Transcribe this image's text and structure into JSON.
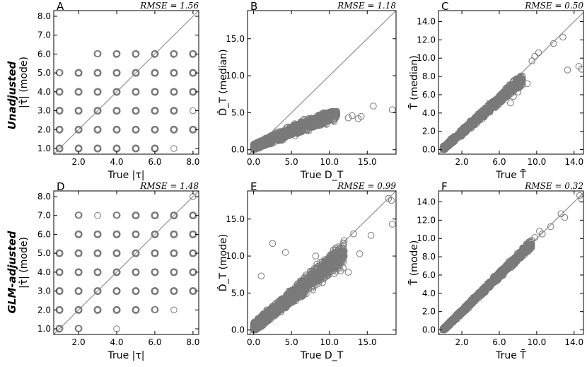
{
  "figure": {
    "row_labels": [
      "Unadjusted",
      "GLM-adjusted"
    ]
  },
  "colors": {
    "marker": "#7a7a7a",
    "diagonal": "#999999",
    "axis": "#000000"
  },
  "chart_data": [
    {
      "id": "A",
      "type": "scatter",
      "panel_label": "A",
      "rmse_text": "RMSE = 1.56",
      "xlabel": "True |τ|",
      "ylabel": "|τ̂| (mode)",
      "xlim": [
        0.7,
        8.3
      ],
      "ylim": [
        0.7,
        8.3
      ],
      "xticks": [
        2,
        4,
        6,
        8
      ],
      "xtick_labels": [
        "2.0",
        "4.0",
        "6.0",
        "8.0"
      ],
      "yticks": [
        1,
        2,
        3,
        4,
        5,
        6,
        7,
        8
      ],
      "ytick_labels": [
        "1.0",
        "2.0",
        "3.0",
        "4.0",
        "5.0",
        "6.0",
        "7.0",
        "8.0"
      ],
      "points": [
        [
          1,
          1,
          4
        ],
        [
          1,
          2,
          4
        ],
        [
          1,
          3,
          4
        ],
        [
          1,
          4,
          4
        ],
        [
          1,
          5,
          2
        ],
        [
          2,
          1,
          4
        ],
        [
          2,
          2,
          4
        ],
        [
          2,
          3,
          4
        ],
        [
          2,
          4,
          4
        ],
        [
          2,
          5,
          4
        ],
        [
          3,
          1,
          4
        ],
        [
          3,
          2,
          4
        ],
        [
          3,
          3,
          4
        ],
        [
          3,
          4,
          4
        ],
        [
          3,
          5,
          4
        ],
        [
          3,
          6,
          2
        ],
        [
          4,
          1,
          4
        ],
        [
          4,
          2,
          4
        ],
        [
          4,
          3,
          4
        ],
        [
          4,
          4,
          4
        ],
        [
          4,
          5,
          4
        ],
        [
          4,
          6,
          3
        ],
        [
          5,
          1,
          4
        ],
        [
          5,
          2,
          4
        ],
        [
          5,
          3,
          4
        ],
        [
          5,
          4,
          4
        ],
        [
          5,
          5,
          4
        ],
        [
          5,
          6,
          3
        ],
        [
          6,
          1,
          4
        ],
        [
          6,
          2,
          4
        ],
        [
          6,
          3,
          4
        ],
        [
          6,
          4,
          4
        ],
        [
          6,
          5,
          4
        ],
        [
          6,
          6,
          3
        ],
        [
          7,
          1,
          1
        ],
        [
          7,
          2,
          4
        ],
        [
          7,
          3,
          4
        ],
        [
          7,
          4,
          4
        ],
        [
          7,
          5,
          4
        ],
        [
          7,
          6,
          3
        ],
        [
          8,
          2,
          4
        ],
        [
          8,
          3,
          1
        ],
        [
          8,
          4,
          4
        ],
        [
          8,
          5,
          4
        ],
        [
          8,
          6,
          3
        ]
      ]
    },
    {
      "id": "B",
      "type": "scatter",
      "panel_label": "B",
      "rmse_text": "RMSE = 1.18",
      "xlabel": "True D_T",
      "ylabel": "D̂_T (median)",
      "xlim": [
        -0.8,
        18.8
      ],
      "ylim": [
        -0.6,
        18.8
      ],
      "xticks": [
        0,
        5,
        10,
        15
      ],
      "xtick_labels": [
        "0.0",
        "5.0",
        "10.0",
        "15.0"
      ],
      "yticks": [
        0,
        5,
        10,
        15
      ],
      "ytick_labels": [
        "0.0",
        "5.0",
        "10.0",
        "15.0"
      ],
      "cloud": {
        "n": 1600,
        "xmax": 11,
        "slope": 0.42,
        "intercept": 0.4,
        "noise": 0.55,
        "cap": 5.2,
        "seed": 11
      },
      "points": [
        [
          12.5,
          4.3
        ],
        [
          13.0,
          4.6
        ],
        [
          13.8,
          4.2
        ],
        [
          14.2,
          4.5
        ],
        [
          15.8,
          5.9
        ],
        [
          18.3,
          5.4
        ]
      ]
    },
    {
      "id": "C",
      "type": "scatter",
      "panel_label": "C",
      "rmse_text": "RMSE = 0.50",
      "xlabel": "True T̄",
      "ylabel": "T̂̄ (median)",
      "xlim": [
        -0.5,
        15.0
      ],
      "ylim": [
        -0.5,
        15.2
      ],
      "xticks": [
        2,
        6,
        10,
        14
      ],
      "xtick_labels": [
        "2.0",
        "6.0",
        "10.0",
        "14.0"
      ],
      "yticks": [
        0,
        2,
        4,
        6,
        8,
        10,
        12,
        14
      ],
      "ytick_labels": [
        "0.0",
        "2.0",
        "4.0",
        "6.0",
        "8.0",
        "10.0",
        "12.0",
        "14.0"
      ],
      "cloud": {
        "n": 1800,
        "xmax": 8.5,
        "slope": 0.9,
        "intercept": 0.1,
        "noise": 0.35,
        "cap": 99,
        "seed": 23
      },
      "points": [
        [
          7.2,
          5.1
        ],
        [
          7.5,
          5.8
        ],
        [
          8.0,
          6.3
        ],
        [
          8.3,
          7.8
        ],
        [
          9.0,
          7.2
        ],
        [
          9.5,
          9.7
        ],
        [
          9.8,
          10.2
        ],
        [
          10.2,
          10.6
        ],
        [
          11.8,
          11.6
        ],
        [
          12.8,
          12.3
        ],
        [
          13.3,
          8.7
        ],
        [
          14.5,
          9.1
        ],
        [
          14.8,
          8.8
        ]
      ]
    },
    {
      "id": "D",
      "type": "scatter",
      "panel_label": "D",
      "rmse_text": "RMSE = 1.48",
      "xlabel": "True |τ|",
      "ylabel": "|τ̂| (mode)",
      "xlim": [
        0.7,
        8.3
      ],
      "ylim": [
        0.7,
        8.3
      ],
      "xticks": [
        2,
        4,
        6,
        8
      ],
      "xtick_labels": [
        "2.0",
        "4.0",
        "6.0",
        "8.0"
      ],
      "yticks": [
        1,
        2,
        3,
        4,
        5,
        6,
        7,
        8
      ],
      "ytick_labels": [
        "1.0",
        "2.0",
        "3.0",
        "4.0",
        "5.0",
        "6.0",
        "7.0",
        "8.0"
      ],
      "points": [
        [
          1,
          1,
          3
        ],
        [
          1,
          2,
          4
        ],
        [
          1,
          3,
          4
        ],
        [
          1,
          4,
          4
        ],
        [
          1,
          5,
          4
        ],
        [
          2,
          1,
          2
        ],
        [
          2,
          2,
          4
        ],
        [
          2,
          3,
          4
        ],
        [
          2,
          4,
          4
        ],
        [
          2,
          5,
          4
        ],
        [
          2,
          6,
          4
        ],
        [
          2,
          7,
          2
        ],
        [
          3,
          2,
          4
        ],
        [
          3,
          3,
          4
        ],
        [
          3,
          4,
          4
        ],
        [
          3,
          5,
          4
        ],
        [
          3,
          6,
          4
        ],
        [
          3,
          7,
          1
        ],
        [
          4,
          1,
          1
        ],
        [
          4,
          2,
          4
        ],
        [
          4,
          3,
          4
        ],
        [
          4,
          4,
          4
        ],
        [
          4,
          5,
          4
        ],
        [
          4,
          6,
          4
        ],
        [
          4,
          7,
          2
        ],
        [
          5,
          2,
          4
        ],
        [
          5,
          3,
          4
        ],
        [
          5,
          4,
          4
        ],
        [
          5,
          5,
          4
        ],
        [
          5,
          6,
          4
        ],
        [
          5,
          7,
          4
        ],
        [
          6,
          2,
          2
        ],
        [
          6,
          3,
          4
        ],
        [
          6,
          4,
          4
        ],
        [
          6,
          5,
          4
        ],
        [
          6,
          6,
          4
        ],
        [
          6,
          7,
          4
        ],
        [
          7,
          2,
          1
        ],
        [
          7,
          3,
          4
        ],
        [
          7,
          4,
          4
        ],
        [
          7,
          5,
          4
        ],
        [
          7,
          6,
          4
        ],
        [
          7,
          7,
          4
        ],
        [
          8,
          3,
          4
        ],
        [
          8,
          4,
          4
        ],
        [
          8,
          5,
          4
        ],
        [
          8,
          6,
          4
        ],
        [
          8,
          7,
          4
        ],
        [
          8,
          8,
          1
        ]
      ]
    },
    {
      "id": "E",
      "type": "scatter",
      "panel_label": "E",
      "rmse_text": "RMSE = 0.99",
      "xlabel": "True D_T",
      "ylabel": "D̂_T (mode)",
      "xlim": [
        -0.8,
        18.8
      ],
      "ylim": [
        -0.6,
        18.8
      ],
      "xticks": [
        0,
        5,
        10,
        15
      ],
      "xtick_labels": [
        "0.0",
        "5.0",
        "10.0",
        "15.0"
      ],
      "yticks": [
        0,
        5,
        10,
        15
      ],
      "ytick_labels": [
        "0.0",
        "5.0",
        "10.0",
        "15.0"
      ],
      "cloud": {
        "n": 1800,
        "xmax": 12,
        "slope": 0.85,
        "intercept": 0.3,
        "noise": 0.9,
        "cap": 99,
        "seed": 37
      },
      "points": [
        [
          2.5,
          11.7
        ],
        [
          4.2,
          10.5
        ],
        [
          1.0,
          7.3
        ],
        [
          12.5,
          7.8
        ],
        [
          14.0,
          10.3
        ],
        [
          15.5,
          12.8
        ],
        [
          17.8,
          17.8
        ],
        [
          18.2,
          17.5
        ],
        [
          18.3,
          14.3
        ],
        [
          13.2,
          13.0
        ],
        [
          11.5,
          8.0
        ],
        [
          8.2,
          10.0
        ]
      ]
    },
    {
      "id": "F",
      "type": "scatter",
      "panel_label": "F",
      "rmse_text": "RMSE = 0.32",
      "xlabel": "True T̄",
      "ylabel": "T̂̄ (mode)",
      "xlim": [
        -0.5,
        15.0
      ],
      "ylim": [
        -0.5,
        15.2
      ],
      "xticks": [
        2,
        6,
        10,
        14
      ],
      "xtick_labels": [
        "2.0",
        "6.0",
        "10.0",
        "14.0"
      ],
      "yticks": [
        0,
        2,
        4,
        6,
        8,
        10,
        12,
        14
      ],
      "ytick_labels": [
        "0.0",
        "2.0",
        "4.0",
        "6.0",
        "8.0",
        "10.0",
        "12.0",
        "14.0"
      ],
      "cloud": {
        "n": 1800,
        "xmax": 9.5,
        "slope": 1.0,
        "intercept": 0.0,
        "noise": 0.28,
        "cap": 99,
        "seed": 53
      },
      "points": [
        [
          9.8,
          10.1
        ],
        [
          10.3,
          10.8
        ],
        [
          10.6,
          10.5
        ],
        [
          11.5,
          11.3
        ],
        [
          12.6,
          12.7
        ],
        [
          13.0,
          12.3
        ],
        [
          14.6,
          14.7
        ],
        [
          14.8,
          14.3
        ]
      ]
    }
  ]
}
